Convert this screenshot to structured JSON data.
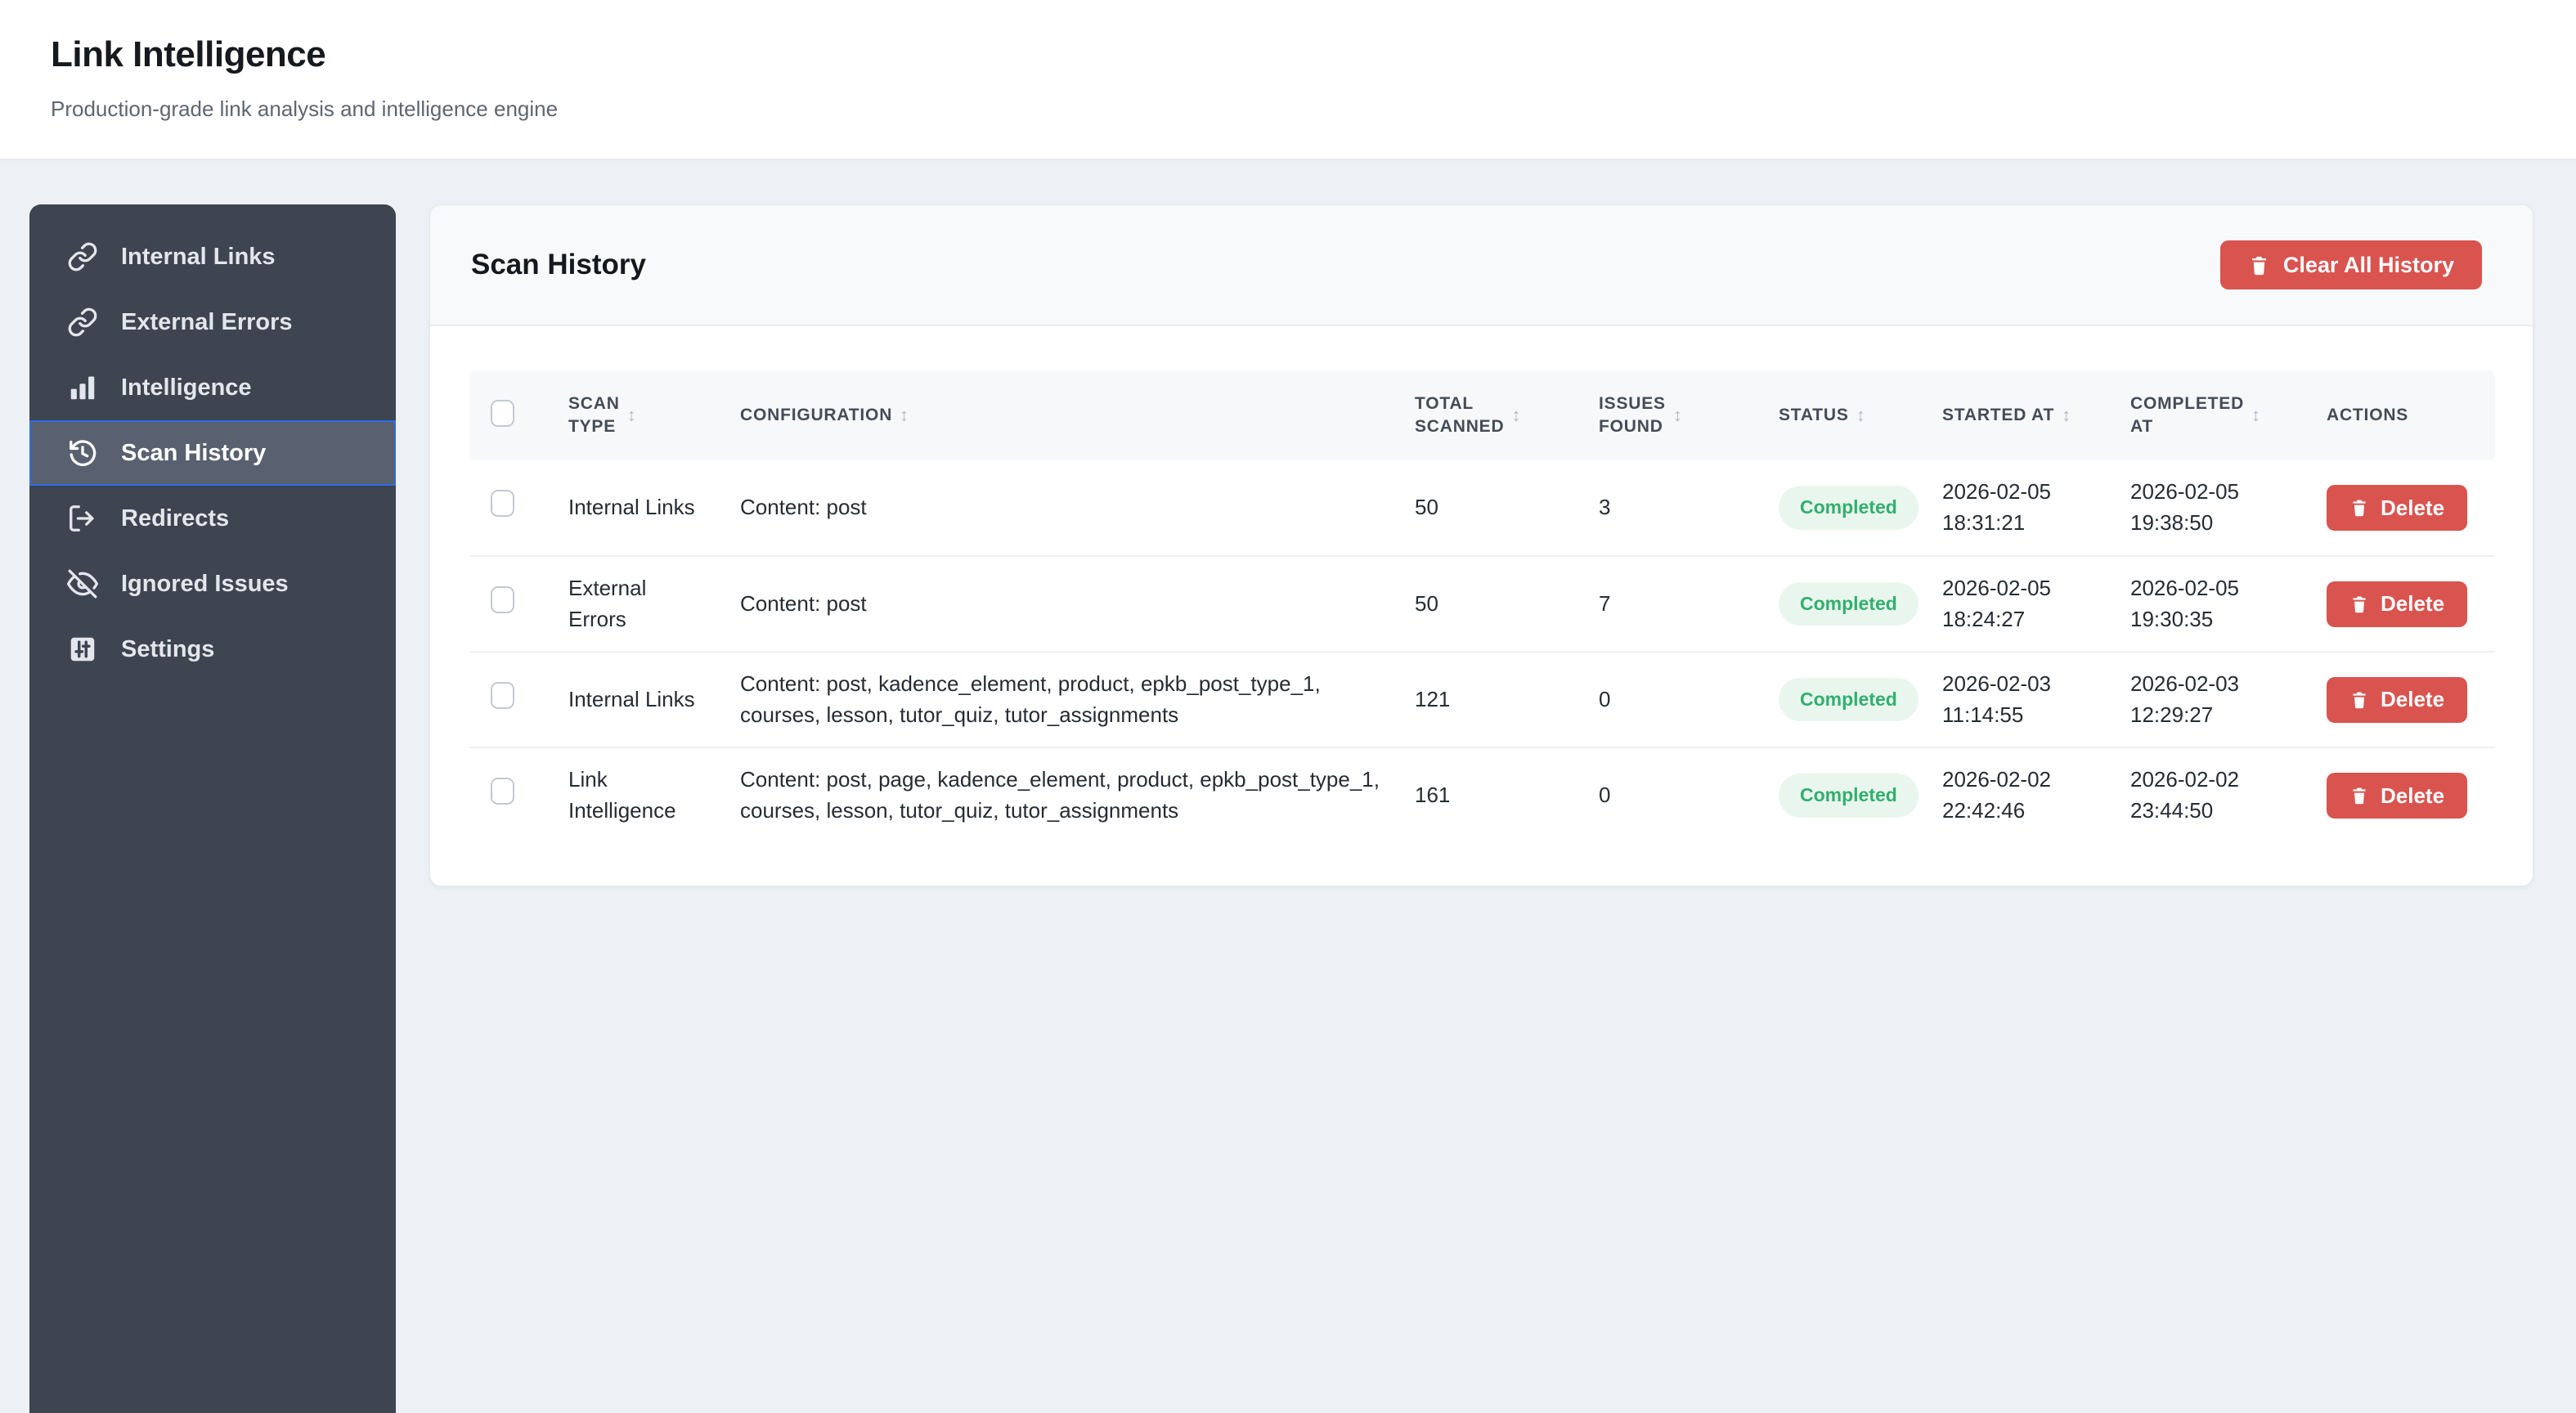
{
  "colors": {
    "accent_blue": "#2e6be6",
    "sidebar_bg": "#3e4450",
    "sidebar_active_bg": "#596170",
    "danger_red": "#d9534f",
    "success_text": "#31af6e",
    "success_bg": "#e9f6ee",
    "page_bg": "#edf0f4"
  },
  "header": {
    "title": "Link Intelligence",
    "subtitle": "Production-grade link analysis and intelligence engine"
  },
  "sidebar": {
    "items": [
      {
        "label": "Internal Links",
        "icon": "link-icon",
        "active": false
      },
      {
        "label": "External Errors",
        "icon": "link-icon",
        "active": false
      },
      {
        "label": "Intelligence",
        "icon": "bar-chart-icon",
        "active": false
      },
      {
        "label": "Scan History",
        "icon": "history-icon",
        "active": true
      },
      {
        "label": "Redirects",
        "icon": "log-out-icon",
        "active": false
      },
      {
        "label": "Ignored Issues",
        "icon": "eye-off-icon",
        "active": false
      },
      {
        "label": "Settings",
        "icon": "sliders-icon",
        "active": false
      }
    ]
  },
  "panel": {
    "title": "Scan History",
    "clear_button": {
      "label": "Clear All History",
      "icon": "trash-icon"
    },
    "table": {
      "columns": [
        {
          "id": "select",
          "label": "",
          "type": "checkbox",
          "sortable": false
        },
        {
          "id": "scan_type",
          "label": "SCAN\nTYPE",
          "sortable": true
        },
        {
          "id": "configuration",
          "label": "CONFIGURATION",
          "sortable": true
        },
        {
          "id": "total_scanned",
          "label": "TOTAL\nSCANNED",
          "sortable": true
        },
        {
          "id": "issues_found",
          "label": "ISSUES\nFOUND",
          "sortable": true
        },
        {
          "id": "status",
          "label": "STATUS",
          "sortable": true
        },
        {
          "id": "started_at",
          "label": "STARTED AT",
          "sortable": true
        },
        {
          "id": "completed_at",
          "label": "COMPLETED\nAT",
          "sortable": true
        },
        {
          "id": "actions",
          "label": "ACTIONS",
          "sortable": false
        }
      ],
      "delete_label": "Delete",
      "rows": [
        {
          "scan_type": "Internal Links",
          "configuration": "Content: post",
          "total_scanned": "50",
          "issues_found": "3",
          "status": "Completed",
          "started_at": "2026-02-05 18:31:21",
          "completed_at": "2026-02-05 19:38:50"
        },
        {
          "scan_type": "External Errors",
          "configuration": "Content: post",
          "total_scanned": "50",
          "issues_found": "7",
          "status": "Completed",
          "started_at": "2026-02-05 18:24:27",
          "completed_at": "2026-02-05 19:30:35"
        },
        {
          "scan_type": "Internal Links",
          "configuration": "Content: post, kadence_element, product, epkb_post_type_1, courses, lesson, tutor_quiz, tutor_assignments",
          "total_scanned": "121",
          "issues_found": "0",
          "status": "Completed",
          "started_at": "2026-02-03 11:14:55",
          "completed_at": "2026-02-03 12:29:27"
        },
        {
          "scan_type": "Link Intelligence",
          "configuration": "Content: post, page, kadence_element, product, epkb_post_type_1, courses, lesson, tutor_quiz, tutor_assignments",
          "total_scanned": "161",
          "issues_found": "0",
          "status": "Completed",
          "started_at": "2026-02-02 22:42:46",
          "completed_at": "2026-02-02 23:44:50"
        }
      ]
    }
  }
}
